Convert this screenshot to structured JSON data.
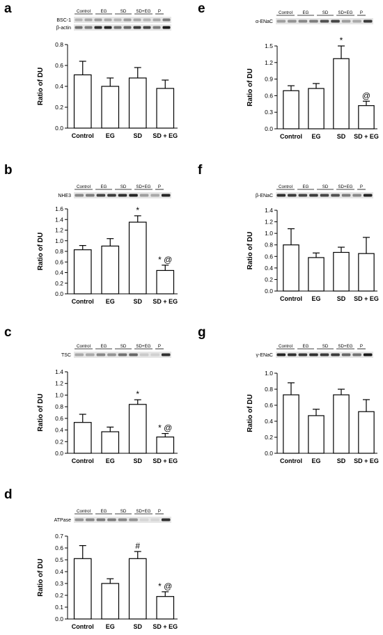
{
  "common": {
    "ylabel": "Ratio of DU",
    "categories": [
      "Control",
      "EG",
      "SD",
      "SD + EG"
    ],
    "blot_groups": [
      "Control",
      "EG",
      "SD",
      "SD+EG",
      "P"
    ]
  },
  "chart_data": [
    {
      "panel": "a",
      "type": "bar",
      "ylabel": "Ratio of DU",
      "categories": [
        "Control",
        "EG",
        "SD",
        "SD + EG"
      ],
      "values": [
        0.51,
        0.4,
        0.48,
        0.38
      ],
      "errors": [
        0.13,
        0.08,
        0.1,
        0.08
      ],
      "annotations": [
        "",
        "",
        "",
        ""
      ],
      "yticks": [
        "0.0",
        "0.2",
        "0.4",
        "0.6",
        "0.8"
      ],
      "ylim": [
        0,
        0.8
      ],
      "blot_labels": [
        "BSC-1",
        "β-actin"
      ]
    },
    {
      "panel": "b",
      "type": "bar",
      "ylabel": "Ratio of DU",
      "categories": [
        "Control",
        "EG",
        "SD",
        "SD + EG"
      ],
      "values": [
        0.83,
        0.9,
        1.35,
        0.44
      ],
      "errors": [
        0.08,
        0.14,
        0.12,
        0.1
      ],
      "annotations": [
        "",
        "",
        "*",
        "* @"
      ],
      "yticks": [
        "0.0",
        "0.2",
        "0.4",
        "0.6",
        "0.8",
        "1.0",
        "1.2",
        "1.4",
        "1.6"
      ],
      "ylim": [
        0,
        1.6
      ],
      "blot_labels": [
        "NHE3"
      ]
    },
    {
      "panel": "c",
      "type": "bar",
      "ylabel": "Ratio of DU",
      "categories": [
        "Control",
        "EG",
        "SD",
        "SD + EG"
      ],
      "values": [
        0.53,
        0.37,
        0.84,
        0.28
      ],
      "errors": [
        0.14,
        0.08,
        0.08,
        0.06
      ],
      "annotations": [
        "",
        "",
        "*",
        "* @"
      ],
      "yticks": [
        "0.0",
        "0.2",
        "0.4",
        "0.6",
        "0.8",
        "1.0",
        "1.2",
        "1.4"
      ],
      "ylim": [
        0,
        1.4
      ],
      "blot_labels": [
        "TSC"
      ]
    },
    {
      "panel": "d",
      "type": "bar",
      "ylabel": "Ratio of DU",
      "categories": [
        "Control",
        "EG",
        "SD",
        "SD + EG"
      ],
      "values": [
        0.51,
        0.3,
        0.51,
        0.19
      ],
      "errors": [
        0.11,
        0.04,
        0.06,
        0.04
      ],
      "annotations": [
        "",
        "",
        "#",
        "* @"
      ],
      "yticks": [
        "0.0",
        "0.1",
        "0.2",
        "0.3",
        "0.4",
        "0.5",
        "0.6",
        "0.7"
      ],
      "ylim": [
        0,
        0.7
      ],
      "blot_labels": [
        "ATPase"
      ]
    },
    {
      "panel": "e",
      "type": "bar",
      "ylabel": "Ratio of DU",
      "categories": [
        "Control",
        "EG",
        "SD",
        "SD + EG"
      ],
      "values": [
        0.69,
        0.73,
        1.27,
        0.42
      ],
      "errors": [
        0.09,
        0.09,
        0.23,
        0.08
      ],
      "annotations": [
        "",
        "",
        "*",
        "@"
      ],
      "yticks": [
        "0.0",
        "0.3",
        "0.6",
        "0.9",
        "1.2",
        "1.5"
      ],
      "ylim": [
        0,
        1.5
      ],
      "blot_labels": [
        "α-ENaC"
      ]
    },
    {
      "panel": "f",
      "type": "bar",
      "ylabel": "Ratio of DU",
      "categories": [
        "Control",
        "EG",
        "SD",
        "SD + EG"
      ],
      "values": [
        0.8,
        0.58,
        0.67,
        0.65
      ],
      "errors": [
        0.28,
        0.08,
        0.09,
        0.28
      ],
      "annotations": [
        "",
        "",
        "",
        ""
      ],
      "yticks": [
        "0.0",
        "0.2",
        "0.4",
        "0.6",
        "0.8",
        "1.0",
        "1.2",
        "1.4"
      ],
      "ylim": [
        0,
        1.4
      ],
      "blot_labels": [
        "β-ENaC"
      ]
    },
    {
      "panel": "g",
      "type": "bar",
      "ylabel": "Ratio of DU",
      "categories": [
        "Control",
        "EG",
        "SD",
        "SD + EG"
      ],
      "values": [
        0.73,
        0.47,
        0.73,
        0.52
      ],
      "errors": [
        0.15,
        0.08,
        0.07,
        0.15
      ],
      "annotations": [
        "",
        "",
        "",
        ""
      ],
      "yticks": [
        "0.0",
        "0.2",
        "0.4",
        "0.6",
        "0.8",
        "1.0"
      ],
      "ylim": [
        0,
        1.0
      ],
      "blot_labels": [
        "γ-ENaC"
      ]
    }
  ]
}
